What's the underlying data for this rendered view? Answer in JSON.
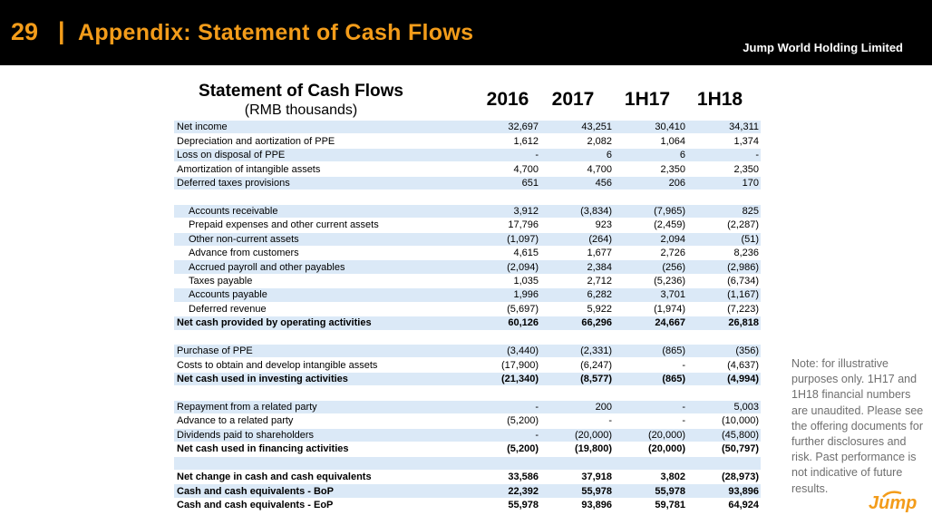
{
  "header": {
    "slide_number": "29",
    "separator": "|",
    "title": "Appendix: Statement of Cash Flows",
    "company": "Jump World Holding Limited"
  },
  "table": {
    "title": "Statement of Cash Flows",
    "subtitle": "(RMB thousands)",
    "columns": [
      "2016",
      "2017",
      "1H17",
      "1H18"
    ],
    "rows": [
      {
        "label": "Net income",
        "values": [
          "32,697",
          "43,251",
          "30,410",
          "34,311"
        ],
        "shade": true,
        "bold": false,
        "indent": false
      },
      {
        "label": "Depreciation and aortization of PPE",
        "values": [
          "1,612",
          "2,082",
          "1,064",
          "1,374"
        ],
        "shade": false,
        "bold": false,
        "indent": false
      },
      {
        "label": "Loss on disposal of PPE",
        "values": [
          "-",
          "6",
          "6",
          "-"
        ],
        "shade": true,
        "bold": false,
        "indent": false
      },
      {
        "label": "Amortization of intangible assets",
        "values": [
          "4,700",
          "4,700",
          "2,350",
          "2,350"
        ],
        "shade": false,
        "bold": false,
        "indent": false
      },
      {
        "label": "Deferred taxes provisions",
        "values": [
          "651",
          "456",
          "206",
          "170"
        ],
        "shade": true,
        "bold": false,
        "indent": false
      },
      {
        "label": "",
        "values": [
          "",
          "",
          "",
          ""
        ],
        "shade": false,
        "bold": false,
        "indent": false
      },
      {
        "label": "Accounts receivable",
        "values": [
          "3,912",
          "(3,834)",
          "(7,965)",
          "825"
        ],
        "shade": true,
        "bold": false,
        "indent": true
      },
      {
        "label": "Prepaid expenses and other current assets",
        "values": [
          "17,796",
          "923",
          "(2,459)",
          "(2,287)"
        ],
        "shade": false,
        "bold": false,
        "indent": true
      },
      {
        "label": "Other non-current assets",
        "values": [
          "(1,097)",
          "(264)",
          "2,094",
          "(51)"
        ],
        "shade": true,
        "bold": false,
        "indent": true
      },
      {
        "label": "Advance from customers",
        "values": [
          "4,615",
          "1,677",
          "2,726",
          "8,236"
        ],
        "shade": false,
        "bold": false,
        "indent": true
      },
      {
        "label": "Accrued payroll and other payables",
        "values": [
          "(2,094)",
          "2,384",
          "(256)",
          "(2,986)"
        ],
        "shade": true,
        "bold": false,
        "indent": true
      },
      {
        "label": "Taxes payable",
        "values": [
          "1,035",
          "2,712",
          "(5,236)",
          "(6,734)"
        ],
        "shade": false,
        "bold": false,
        "indent": true
      },
      {
        "label": "Accounts payable",
        "values": [
          "1,996",
          "6,282",
          "3,701",
          "(1,167)"
        ],
        "shade": true,
        "bold": false,
        "indent": true
      },
      {
        "label": "Deferred revenue",
        "values": [
          "(5,697)",
          "5,922",
          "(1,974)",
          "(7,223)"
        ],
        "shade": false,
        "bold": false,
        "indent": true
      },
      {
        "label": "Net cash provided by operating activities",
        "values": [
          "60,126",
          "66,296",
          "24,667",
          "26,818"
        ],
        "shade": true,
        "bold": true,
        "indent": false
      },
      {
        "label": "",
        "values": [
          "",
          "",
          "",
          ""
        ],
        "shade": false,
        "bold": false,
        "indent": false
      },
      {
        "label": "Purchase of PPE",
        "values": [
          "(3,440)",
          "(2,331)",
          "(865)",
          "(356)"
        ],
        "shade": true,
        "bold": false,
        "indent": false
      },
      {
        "label": "Costs to obtain and develop intangible assets",
        "values": [
          "(17,900)",
          "(6,247)",
          "-",
          "(4,637)"
        ],
        "shade": false,
        "bold": false,
        "indent": false
      },
      {
        "label": "Net cash used in investing activities",
        "values": [
          "(21,340)",
          "(8,577)",
          "(865)",
          "(4,994)"
        ],
        "shade": true,
        "bold": true,
        "indent": false
      },
      {
        "label": "",
        "values": [
          "",
          "",
          "",
          ""
        ],
        "shade": false,
        "bold": false,
        "indent": false
      },
      {
        "label": "Repayment from a related party",
        "values": [
          "-",
          "200",
          "-",
          "5,003"
        ],
        "shade": true,
        "bold": false,
        "indent": false
      },
      {
        "label": "Advance to a related party",
        "values": [
          "(5,200)",
          "-",
          "-",
          "(10,000)"
        ],
        "shade": false,
        "bold": false,
        "indent": false
      },
      {
        "label": "Dividends paid to shareholders",
        "values": [
          "-",
          "(20,000)",
          "(20,000)",
          "(45,800)"
        ],
        "shade": true,
        "bold": false,
        "indent": false
      },
      {
        "label": "Net cash used in financing activities",
        "values": [
          "(5,200)",
          "(19,800)",
          "(20,000)",
          "(50,797)"
        ],
        "shade": false,
        "bold": true,
        "indent": false
      },
      {
        "label": "",
        "values": [
          "",
          "",
          "",
          ""
        ],
        "shade": true,
        "bold": false,
        "indent": false
      },
      {
        "label": "Net change in cash and cash equivalents",
        "values": [
          "33,586",
          "37,918",
          "3,802",
          "(28,973)"
        ],
        "shade": false,
        "bold": true,
        "indent": false
      },
      {
        "label": "Cash and cash equivalents - BoP",
        "values": [
          "22,392",
          "55,978",
          "55,978",
          "93,896"
        ],
        "shade": true,
        "bold": true,
        "indent": false
      },
      {
        "label": "Cash and cash equivalents - EoP",
        "values": [
          "55,978",
          "93,896",
          "59,781",
          "64,924"
        ],
        "shade": false,
        "bold": true,
        "indent": false
      }
    ]
  },
  "note": "Note: for illustrative purposes only. 1H17 and 1H18 financial numbers are unaudited. Please see the offering documents for further disclosures and risk. Past performance is not indicative of future results.",
  "logo": {
    "text": "Jump"
  },
  "colors": {
    "accent": "#f39c1a",
    "shade": "#dbe9f7",
    "header_bg": "#000000",
    "note_text": "#6f6f6f"
  }
}
